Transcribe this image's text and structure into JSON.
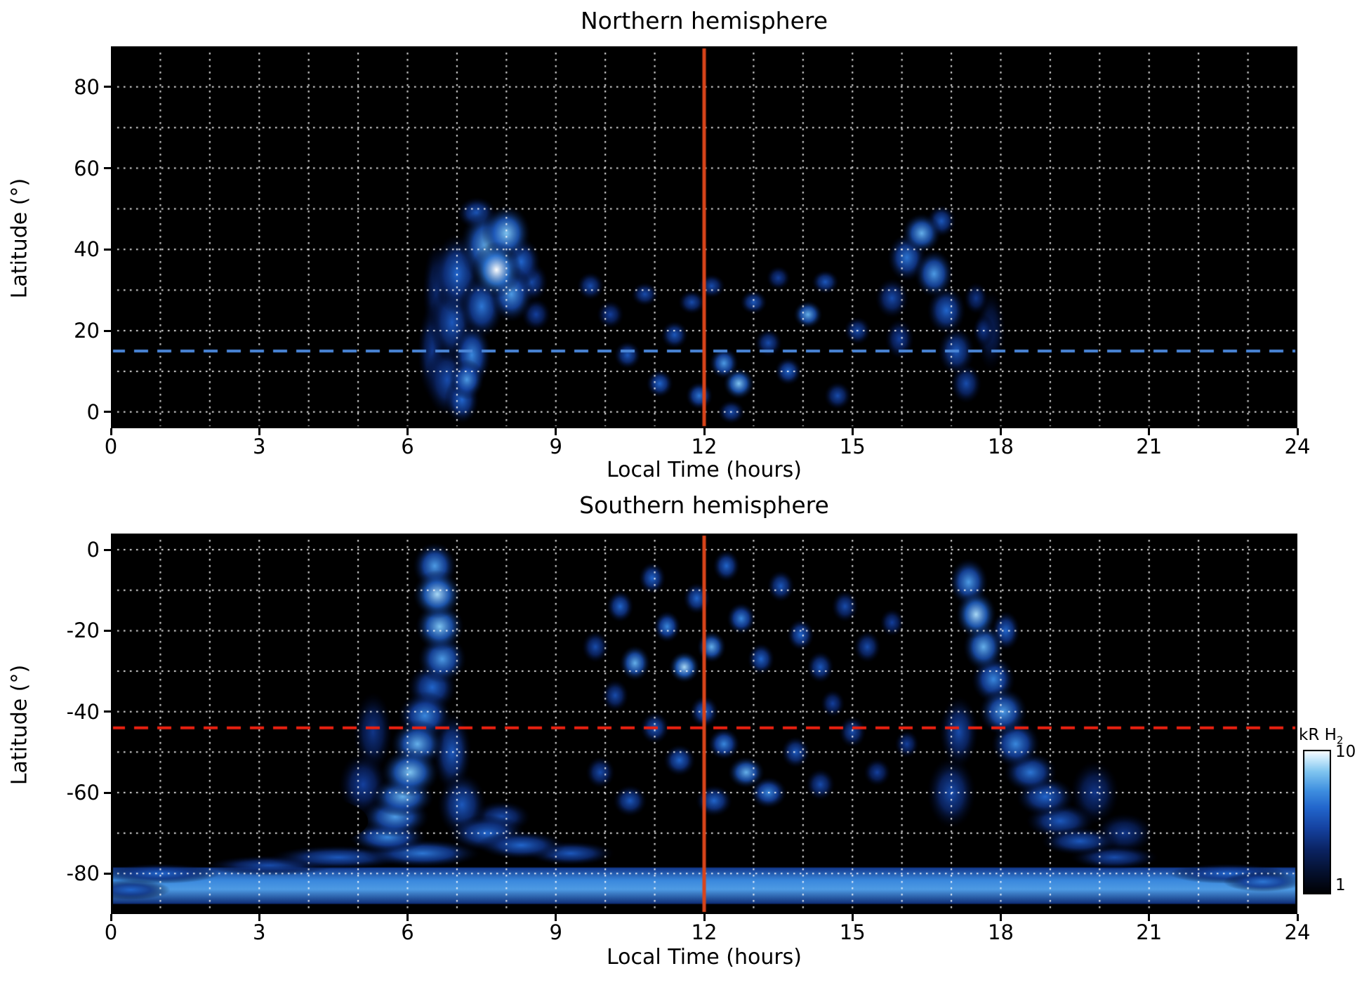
{
  "figure": {
    "background": "#ffffff",
    "plot_background": "#000000",
    "grid_color": "#ffffff"
  },
  "colorbar": {
    "title": "kR H",
    "title_sub": "2",
    "tick_top": "10",
    "tick_bottom": "1"
  },
  "chart_data": [
    {
      "type": "heatmap",
      "title": "Northern hemisphere",
      "xlabel": "Local Time (hours)",
      "ylabel": "Latitude (°)",
      "xlim": [
        0,
        24
      ],
      "ylim": [
        -4,
        90
      ],
      "xticks": [
        0,
        3,
        6,
        9,
        12,
        15,
        18,
        21,
        24
      ],
      "yticks": [
        0,
        20,
        40,
        60,
        80
      ],
      "x_grid_step": 1,
      "y_grid_step": 10,
      "intensity_units": "kR H2",
      "intensity_range": [
        1,
        10
      ],
      "vline": {
        "x": 12,
        "color": "#d9441a"
      },
      "hline": {
        "y": 15,
        "color": "#4a86d8",
        "style": "dashed"
      },
      "blobs": [
        [
          6.5,
          15,
          0.3,
          12,
          0.4
        ],
        [
          6.6,
          30,
          0.3,
          12,
          0.35
        ],
        [
          6.8,
          8,
          0.45,
          9,
          0.5
        ],
        [
          6.9,
          22,
          0.45,
          10,
          0.55
        ],
        [
          7.0,
          34,
          0.5,
          10,
          0.6
        ],
        [
          7.1,
          3,
          0.35,
          6,
          0.6
        ],
        [
          7.2,
          8,
          0.35,
          5,
          0.75
        ],
        [
          7.3,
          14,
          0.4,
          8,
          0.7
        ],
        [
          7.4,
          49,
          0.4,
          4,
          0.55
        ],
        [
          7.5,
          26,
          0.45,
          8,
          0.65
        ],
        [
          7.6,
          41,
          0.55,
          9,
          0.8
        ],
        [
          7.8,
          35,
          0.5,
          7,
          1.0
        ],
        [
          8.0,
          44,
          0.5,
          7,
          0.85
        ],
        [
          8.1,
          29,
          0.45,
          7,
          0.75
        ],
        [
          8.3,
          37,
          0.4,
          6,
          0.6
        ],
        [
          8.5,
          32,
          0.35,
          5,
          0.5
        ],
        [
          8.6,
          24,
          0.3,
          4,
          0.45
        ],
        [
          9.7,
          31,
          0.28,
          3.5,
          0.5
        ],
        [
          10.1,
          24,
          0.28,
          3.5,
          0.45
        ],
        [
          10.45,
          14,
          0.28,
          3.5,
          0.55
        ],
        [
          10.8,
          29,
          0.28,
          3,
          0.5
        ],
        [
          11.1,
          7,
          0.28,
          3.5,
          0.6
        ],
        [
          11.4,
          19,
          0.28,
          3.5,
          0.55
        ],
        [
          11.75,
          27,
          0.28,
          3,
          0.5
        ],
        [
          11.9,
          4,
          0.28,
          3.5,
          0.65
        ],
        [
          12.15,
          31,
          0.28,
          3,
          0.5
        ],
        [
          12.4,
          12,
          0.3,
          4,
          0.75
        ],
        [
          12.55,
          0,
          0.28,
          3,
          0.5
        ],
        [
          12.7,
          7,
          0.32,
          4,
          0.85
        ],
        [
          13.0,
          27,
          0.28,
          3,
          0.55
        ],
        [
          13.3,
          17,
          0.28,
          3.5,
          0.5
        ],
        [
          13.5,
          33,
          0.25,
          3,
          0.45
        ],
        [
          13.7,
          10,
          0.28,
          3.5,
          0.6
        ],
        [
          14.1,
          24,
          0.3,
          3.5,
          0.8
        ],
        [
          14.45,
          32,
          0.28,
          3,
          0.55
        ],
        [
          14.7,
          4,
          0.28,
          3.5,
          0.5
        ],
        [
          15.1,
          20,
          0.28,
          3.5,
          0.5
        ],
        [
          15.8,
          28,
          0.35,
          5,
          0.5
        ],
        [
          15.95,
          18,
          0.3,
          5,
          0.45
        ],
        [
          16.1,
          38,
          0.4,
          6,
          0.65
        ],
        [
          16.4,
          44,
          0.4,
          5,
          0.8
        ],
        [
          16.65,
          34,
          0.4,
          6,
          0.75
        ],
        [
          16.8,
          47,
          0.3,
          4,
          0.55
        ],
        [
          16.9,
          25,
          0.4,
          6,
          0.6
        ],
        [
          17.1,
          15,
          0.38,
          6,
          0.55
        ],
        [
          17.3,
          7,
          0.32,
          5,
          0.5
        ],
        [
          17.5,
          28,
          0.25,
          4,
          0.4
        ],
        [
          17.65,
          20,
          0.22,
          4,
          0.4
        ],
        [
          17.8,
          20,
          0.3,
          10,
          0.3
        ]
      ]
    },
    {
      "type": "heatmap",
      "title": "Southern hemisphere",
      "xlabel": "Local Time (hours)",
      "ylabel": "Latitude (°)",
      "xlim": [
        0,
        24
      ],
      "ylim": [
        -90,
        4
      ],
      "xticks": [
        0,
        3,
        6,
        9,
        12,
        15,
        18,
        21,
        24
      ],
      "yticks": [
        0,
        -20,
        -40,
        -60,
        -80
      ],
      "x_grid_step": 1,
      "y_grid_step": 10,
      "intensity_units": "kR H2",
      "intensity_range": [
        1,
        10
      ],
      "vline": {
        "x": 12,
        "color": "#d9441a"
      },
      "hline": {
        "y": -44,
        "color": "#ee2211",
        "style": "dashed"
      },
      "band": {
        "t0": 0,
        "t1": 24,
        "lat0": -78.5,
        "lat1": -87.5,
        "v": 0.7
      },
      "dark_blobs": [
        [
          4.2,
          -67,
          1.0,
          5.5
        ]
      ],
      "blobs": [
        [
          5.1,
          -58,
          0.5,
          8,
          0.45
        ],
        [
          5.3,
          -45,
          0.4,
          10,
          0.4
        ],
        [
          5.6,
          -71,
          0.8,
          4,
          0.7
        ],
        [
          5.75,
          -66,
          0.7,
          5,
          0.75
        ],
        [
          5.9,
          -61,
          0.65,
          5,
          0.8
        ],
        [
          6.05,
          -55,
          0.6,
          6,
          0.85
        ],
        [
          6.2,
          -48,
          0.55,
          6,
          0.8
        ],
        [
          6.3,
          -75,
          1.2,
          3.5,
          0.65
        ],
        [
          6.35,
          -41,
          0.55,
          6,
          0.7
        ],
        [
          6.5,
          -34,
          0.5,
          6,
          0.6
        ],
        [
          6.55,
          -4,
          0.45,
          6,
          0.75
        ],
        [
          6.6,
          -11,
          0.5,
          6,
          0.9
        ],
        [
          6.65,
          -19,
          0.5,
          6,
          0.85
        ],
        [
          6.7,
          -27,
          0.5,
          6,
          0.75
        ],
        [
          6.9,
          -50,
          0.4,
          10,
          0.55
        ],
        [
          7.1,
          -63,
          0.5,
          8,
          0.55
        ],
        [
          7.6,
          -70,
          0.8,
          4.5,
          0.6
        ],
        [
          7.9,
          -66,
          0.6,
          4,
          0.5
        ],
        [
          8.3,
          -73,
          0.9,
          3.5,
          0.6
        ],
        [
          4.6,
          -76,
          1.4,
          3,
          0.55
        ],
        [
          3.2,
          -78,
          1.3,
          2.5,
          0.5
        ],
        [
          9.3,
          -75,
          0.9,
          3,
          0.55
        ],
        [
          9.8,
          -24,
          0.28,
          4,
          0.5
        ],
        [
          9.9,
          -55,
          0.3,
          4,
          0.5
        ],
        [
          10.2,
          -36,
          0.28,
          4,
          0.5
        ],
        [
          10.3,
          -14,
          0.28,
          4,
          0.6
        ],
        [
          10.5,
          -62,
          0.35,
          4,
          0.55
        ],
        [
          10.6,
          -28,
          0.32,
          4.5,
          0.8
        ],
        [
          10.95,
          -7,
          0.28,
          4,
          0.6
        ],
        [
          11.0,
          -44,
          0.3,
          4,
          0.55
        ],
        [
          11.25,
          -19,
          0.28,
          4,
          0.7
        ],
        [
          11.5,
          -52,
          0.33,
          4,
          0.6
        ],
        [
          11.6,
          -29,
          0.32,
          4,
          0.9
        ],
        [
          11.85,
          -12,
          0.28,
          4,
          0.6
        ],
        [
          12.0,
          -40,
          0.3,
          4,
          0.6
        ],
        [
          12.15,
          -24,
          0.3,
          4,
          0.8
        ],
        [
          12.2,
          -62,
          0.38,
          4,
          0.6
        ],
        [
          12.4,
          -48,
          0.33,
          4,
          0.7
        ],
        [
          12.45,
          -4,
          0.28,
          4,
          0.6
        ],
        [
          12.75,
          -17,
          0.3,
          4,
          0.7
        ],
        [
          12.85,
          -55,
          0.38,
          4,
          0.8
        ],
        [
          13.15,
          -27,
          0.28,
          4,
          0.6
        ],
        [
          13.3,
          -60,
          0.38,
          4,
          0.7
        ],
        [
          13.55,
          -9,
          0.28,
          4,
          0.55
        ],
        [
          13.85,
          -50,
          0.3,
          4,
          0.55
        ],
        [
          13.95,
          -21,
          0.28,
          4,
          0.6
        ],
        [
          14.35,
          -29,
          0.28,
          4,
          0.55
        ],
        [
          14.35,
          -58,
          0.3,
          4,
          0.5
        ],
        [
          14.6,
          -38,
          0.25,
          3.5,
          0.45
        ],
        [
          14.85,
          -14,
          0.28,
          4,
          0.5
        ],
        [
          15.0,
          -45,
          0.28,
          4,
          0.5
        ],
        [
          15.3,
          -24,
          0.28,
          4,
          0.5
        ],
        [
          15.5,
          -55,
          0.28,
          3.5,
          0.45
        ],
        [
          15.8,
          -18,
          0.25,
          3.5,
          0.45
        ],
        [
          16.1,
          -48,
          0.25,
          3.5,
          0.45
        ],
        [
          17.0,
          -60,
          0.5,
          9,
          0.5
        ],
        [
          17.15,
          -45,
          0.4,
          9,
          0.5
        ],
        [
          17.35,
          -8,
          0.4,
          6,
          0.75
        ],
        [
          17.5,
          -16,
          0.42,
          6,
          0.9
        ],
        [
          17.65,
          -24,
          0.42,
          6,
          0.8
        ],
        [
          17.85,
          -32,
          0.45,
          6,
          0.7
        ],
        [
          18.05,
          -40,
          0.5,
          6,
          0.75
        ],
        [
          18.1,
          -20,
          0.3,
          5,
          0.6
        ],
        [
          18.3,
          -48,
          0.5,
          6,
          0.7
        ],
        [
          18.6,
          -55,
          0.55,
          5,
          0.65
        ],
        [
          18.9,
          -61,
          0.6,
          5,
          0.6
        ],
        [
          19.2,
          -67,
          0.7,
          4.5,
          0.55
        ],
        [
          19.6,
          -72,
          0.8,
          3.5,
          0.55
        ],
        [
          19.9,
          -60,
          0.5,
          8,
          0.4
        ],
        [
          20.3,
          -76,
          0.9,
          3,
          0.5
        ],
        [
          20.5,
          -70,
          0.6,
          5,
          0.4
        ],
        [
          1.0,
          -80,
          1.2,
          2.5,
          0.6
        ],
        [
          22.6,
          -80,
          1.2,
          2.5,
          0.6
        ],
        [
          23.3,
          -82,
          0.8,
          2.5,
          0.65
        ],
        [
          0.4,
          -84,
          0.8,
          2.5,
          0.6
        ]
      ]
    }
  ]
}
